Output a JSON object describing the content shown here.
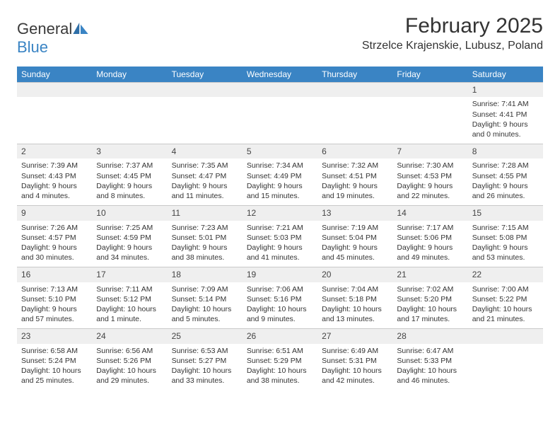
{
  "logo": {
    "text1": "General",
    "text2": "Blue"
  },
  "title": "February 2025",
  "location": "Strzelce Krajenskie, Lubusz, Poland",
  "colors": {
    "header_bg": "#3a84c4",
    "daynum_bg": "#efefef",
    "border": "#c9c9c9",
    "text": "#333333"
  },
  "weekdays": [
    "Sunday",
    "Monday",
    "Tuesday",
    "Wednesday",
    "Thursday",
    "Friday",
    "Saturday"
  ],
  "weeks": [
    [
      {
        "n": "",
        "sunrise": "",
        "sunset": "",
        "daylight": ""
      },
      {
        "n": "",
        "sunrise": "",
        "sunset": "",
        "daylight": ""
      },
      {
        "n": "",
        "sunrise": "",
        "sunset": "",
        "daylight": ""
      },
      {
        "n": "",
        "sunrise": "",
        "sunset": "",
        "daylight": ""
      },
      {
        "n": "",
        "sunrise": "",
        "sunset": "",
        "daylight": ""
      },
      {
        "n": "",
        "sunrise": "",
        "sunset": "",
        "daylight": ""
      },
      {
        "n": "1",
        "sunrise": "Sunrise: 7:41 AM",
        "sunset": "Sunset: 4:41 PM",
        "daylight": "Daylight: 9 hours and 0 minutes."
      }
    ],
    [
      {
        "n": "2",
        "sunrise": "Sunrise: 7:39 AM",
        "sunset": "Sunset: 4:43 PM",
        "daylight": "Daylight: 9 hours and 4 minutes."
      },
      {
        "n": "3",
        "sunrise": "Sunrise: 7:37 AM",
        "sunset": "Sunset: 4:45 PM",
        "daylight": "Daylight: 9 hours and 8 minutes."
      },
      {
        "n": "4",
        "sunrise": "Sunrise: 7:35 AM",
        "sunset": "Sunset: 4:47 PM",
        "daylight": "Daylight: 9 hours and 11 minutes."
      },
      {
        "n": "5",
        "sunrise": "Sunrise: 7:34 AM",
        "sunset": "Sunset: 4:49 PM",
        "daylight": "Daylight: 9 hours and 15 minutes."
      },
      {
        "n": "6",
        "sunrise": "Sunrise: 7:32 AM",
        "sunset": "Sunset: 4:51 PM",
        "daylight": "Daylight: 9 hours and 19 minutes."
      },
      {
        "n": "7",
        "sunrise": "Sunrise: 7:30 AM",
        "sunset": "Sunset: 4:53 PM",
        "daylight": "Daylight: 9 hours and 22 minutes."
      },
      {
        "n": "8",
        "sunrise": "Sunrise: 7:28 AM",
        "sunset": "Sunset: 4:55 PM",
        "daylight": "Daylight: 9 hours and 26 minutes."
      }
    ],
    [
      {
        "n": "9",
        "sunrise": "Sunrise: 7:26 AM",
        "sunset": "Sunset: 4:57 PM",
        "daylight": "Daylight: 9 hours and 30 minutes."
      },
      {
        "n": "10",
        "sunrise": "Sunrise: 7:25 AM",
        "sunset": "Sunset: 4:59 PM",
        "daylight": "Daylight: 9 hours and 34 minutes."
      },
      {
        "n": "11",
        "sunrise": "Sunrise: 7:23 AM",
        "sunset": "Sunset: 5:01 PM",
        "daylight": "Daylight: 9 hours and 38 minutes."
      },
      {
        "n": "12",
        "sunrise": "Sunrise: 7:21 AM",
        "sunset": "Sunset: 5:03 PM",
        "daylight": "Daylight: 9 hours and 41 minutes."
      },
      {
        "n": "13",
        "sunrise": "Sunrise: 7:19 AM",
        "sunset": "Sunset: 5:04 PM",
        "daylight": "Daylight: 9 hours and 45 minutes."
      },
      {
        "n": "14",
        "sunrise": "Sunrise: 7:17 AM",
        "sunset": "Sunset: 5:06 PM",
        "daylight": "Daylight: 9 hours and 49 minutes."
      },
      {
        "n": "15",
        "sunrise": "Sunrise: 7:15 AM",
        "sunset": "Sunset: 5:08 PM",
        "daylight": "Daylight: 9 hours and 53 minutes."
      }
    ],
    [
      {
        "n": "16",
        "sunrise": "Sunrise: 7:13 AM",
        "sunset": "Sunset: 5:10 PM",
        "daylight": "Daylight: 9 hours and 57 minutes."
      },
      {
        "n": "17",
        "sunrise": "Sunrise: 7:11 AM",
        "sunset": "Sunset: 5:12 PM",
        "daylight": "Daylight: 10 hours and 1 minute."
      },
      {
        "n": "18",
        "sunrise": "Sunrise: 7:09 AM",
        "sunset": "Sunset: 5:14 PM",
        "daylight": "Daylight: 10 hours and 5 minutes."
      },
      {
        "n": "19",
        "sunrise": "Sunrise: 7:06 AM",
        "sunset": "Sunset: 5:16 PM",
        "daylight": "Daylight: 10 hours and 9 minutes."
      },
      {
        "n": "20",
        "sunrise": "Sunrise: 7:04 AM",
        "sunset": "Sunset: 5:18 PM",
        "daylight": "Daylight: 10 hours and 13 minutes."
      },
      {
        "n": "21",
        "sunrise": "Sunrise: 7:02 AM",
        "sunset": "Sunset: 5:20 PM",
        "daylight": "Daylight: 10 hours and 17 minutes."
      },
      {
        "n": "22",
        "sunrise": "Sunrise: 7:00 AM",
        "sunset": "Sunset: 5:22 PM",
        "daylight": "Daylight: 10 hours and 21 minutes."
      }
    ],
    [
      {
        "n": "23",
        "sunrise": "Sunrise: 6:58 AM",
        "sunset": "Sunset: 5:24 PM",
        "daylight": "Daylight: 10 hours and 25 minutes."
      },
      {
        "n": "24",
        "sunrise": "Sunrise: 6:56 AM",
        "sunset": "Sunset: 5:26 PM",
        "daylight": "Daylight: 10 hours and 29 minutes."
      },
      {
        "n": "25",
        "sunrise": "Sunrise: 6:53 AM",
        "sunset": "Sunset: 5:27 PM",
        "daylight": "Daylight: 10 hours and 33 minutes."
      },
      {
        "n": "26",
        "sunrise": "Sunrise: 6:51 AM",
        "sunset": "Sunset: 5:29 PM",
        "daylight": "Daylight: 10 hours and 38 minutes."
      },
      {
        "n": "27",
        "sunrise": "Sunrise: 6:49 AM",
        "sunset": "Sunset: 5:31 PM",
        "daylight": "Daylight: 10 hours and 42 minutes."
      },
      {
        "n": "28",
        "sunrise": "Sunrise: 6:47 AM",
        "sunset": "Sunset: 5:33 PM",
        "daylight": "Daylight: 10 hours and 46 minutes."
      },
      {
        "n": "",
        "sunrise": "",
        "sunset": "",
        "daylight": ""
      }
    ]
  ]
}
